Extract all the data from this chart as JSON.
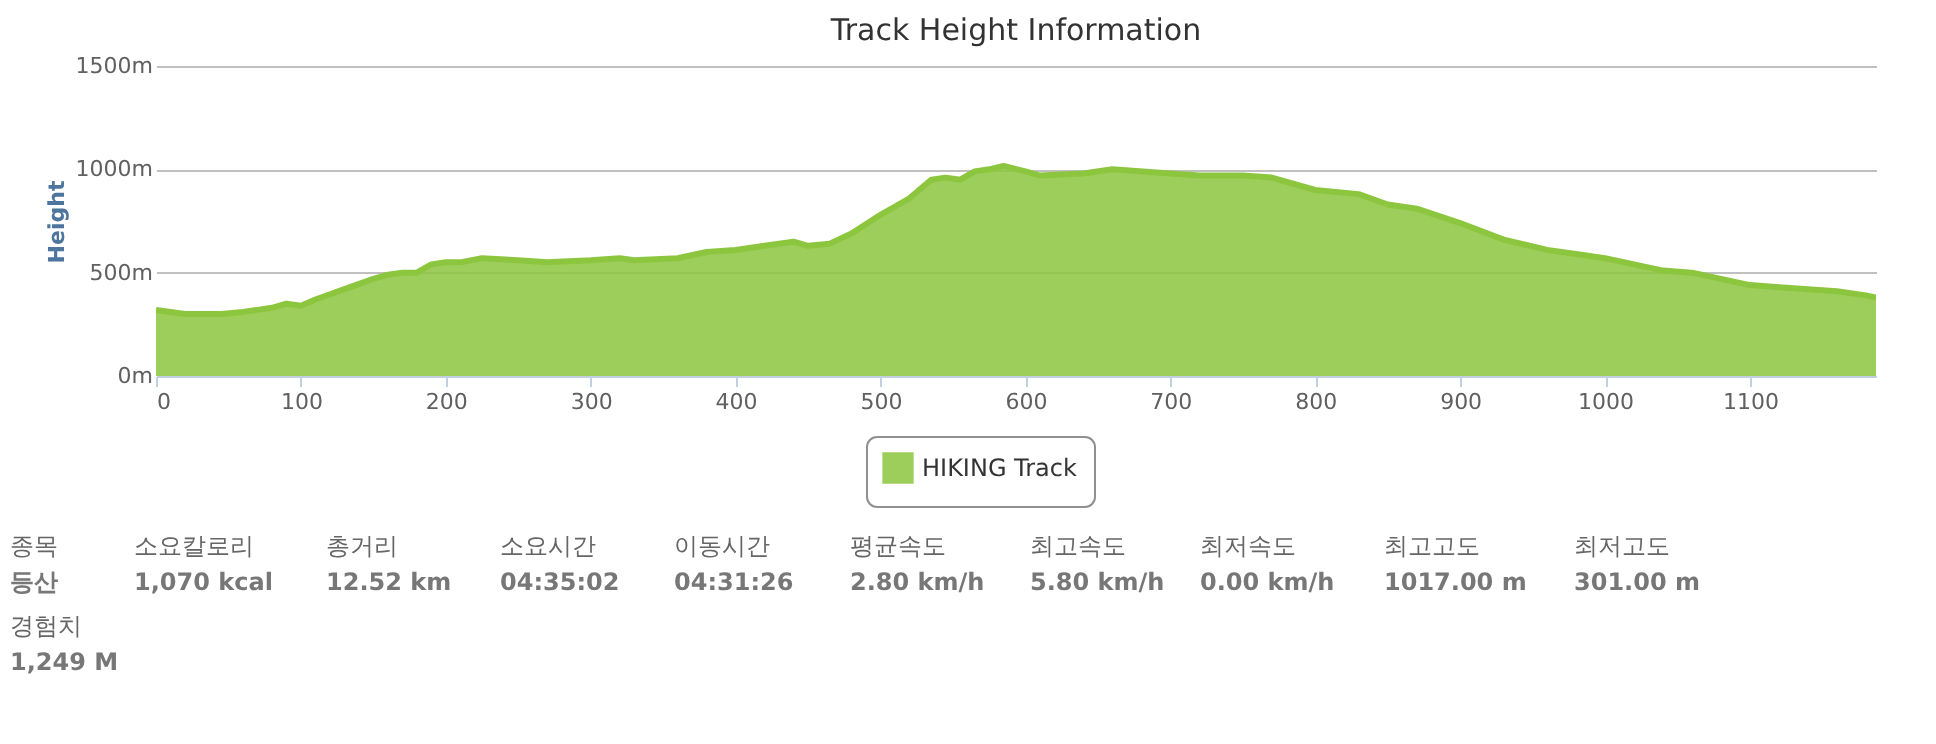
{
  "chart_data": {
    "type": "area",
    "title": "Track Height Information",
    "ylabel": "Height",
    "x": [
      0,
      10,
      20,
      30,
      45,
      60,
      70,
      80,
      90,
      100,
      110,
      130,
      150,
      160,
      170,
      180,
      190,
      200,
      210,
      225,
      250,
      270,
      300,
      320,
      330,
      360,
      380,
      400,
      420,
      440,
      450,
      465,
      480,
      500,
      520,
      525,
      535,
      545,
      555,
      565,
      575,
      585,
      600,
      610,
      640,
      660,
      700,
      720,
      750,
      770,
      800,
      830,
      850,
      870,
      900,
      930,
      960,
      980,
      1000,
      1020,
      1040,
      1060,
      1080,
      1100,
      1120,
      1140,
      1160,
      1180,
      1187
    ],
    "series": [
      {
        "name": "HIKING Track",
        "color": "#8cc63f",
        "values": [
          320,
          310,
          300,
          300,
          300,
          310,
          320,
          330,
          350,
          340,
          370,
          420,
          470,
          490,
          500,
          500,
          540,
          550,
          550,
          570,
          560,
          550,
          560,
          570,
          560,
          570,
          600,
          610,
          630,
          650,
          630,
          640,
          690,
          780,
          860,
          890,
          950,
          960,
          950,
          990,
          1000,
          1017,
          990,
          970,
          980,
          1000,
          980,
          970,
          970,
          960,
          900,
          880,
          830,
          810,
          740,
          660,
          610,
          590,
          570,
          540,
          510,
          500,
          470,
          440,
          430,
          420,
          410,
          390,
          380
        ]
      }
    ],
    "xlim": [
      0,
      1187
    ],
    "xticks": [
      0,
      100,
      200,
      300,
      400,
      500,
      600,
      700,
      800,
      900,
      1000,
      1100
    ],
    "ylim": [
      0,
      1500
    ],
    "yticks": [
      {
        "value": 0,
        "label": "0m"
      },
      {
        "value": 500,
        "label": "500m"
      },
      {
        "value": 1000,
        "label": "1000m"
      },
      {
        "value": 1500,
        "label": "1500m"
      }
    ],
    "grid": "y",
    "legend": "bottom",
    "annotations": [
      "종목",
      "등산",
      "소요칼로리",
      "1,070 kcal",
      "총거리",
      "12.52 km",
      "소요시간",
      "04:35:02",
      "이동시간",
      "04:31:26",
      "평균속도",
      "2.80 km/h",
      "최고속도",
      "5.80 km/h",
      "최저속도",
      "0.00 km/h",
      "최고고도",
      "1017.00 m",
      "최저고도",
      "301.00 m",
      "경험치",
      "1,249 M"
    ]
  }
}
